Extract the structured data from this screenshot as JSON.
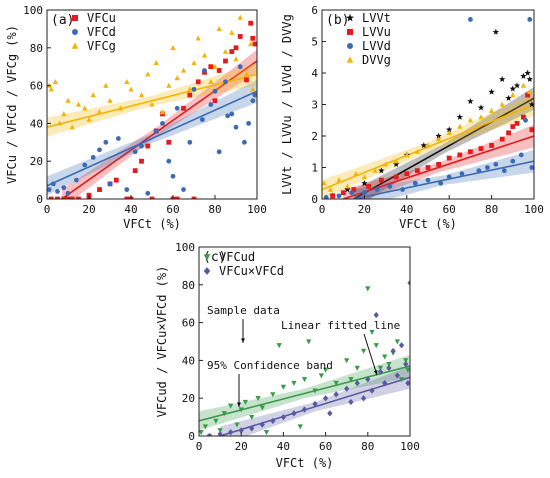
{
  "chart_data": [
    {
      "panel_label": "(a)",
      "type": "scatter",
      "xlabel": "VFCt (%)",
      "ylabel": "VFCu / VFCd / VFCg (%)",
      "xlim": [
        0,
        100
      ],
      "ylim": [
        0,
        100
      ],
      "xticks": [
        0,
        20,
        40,
        60,
        80,
        100
      ],
      "yticks": [
        0,
        20,
        40,
        60,
        80,
        100
      ],
      "legend_position": "top-left",
      "series": [
        {
          "name": "VFCu",
          "marker": "square",
          "color": "#e41a1c",
          "x": [
            2,
            5,
            8,
            12,
            15,
            20,
            25,
            30,
            33,
            38,
            42,
            45,
            48,
            52,
            55,
            58,
            62,
            65,
            68,
            72,
            75,
            78,
            80,
            82,
            85,
            88,
            90,
            92,
            95,
            97,
            98,
            99,
            60,
            70,
            40,
            50,
            20,
            10
          ],
          "y": [
            0,
            0,
            0,
            0,
            0,
            2,
            5,
            8,
            10,
            0,
            15,
            20,
            28,
            36,
            45,
            30,
            0,
            48,
            55,
            62,
            67,
            70,
            52,
            68,
            73,
            78,
            80,
            86,
            63,
            93,
            85,
            82,
            0,
            0,
            0,
            0,
            0,
            0
          ],
          "fit": {
            "x": [
              7,
              100
            ],
            "y": [
              0,
              73
            ]
          }
        },
        {
          "name": "VFCd",
          "marker": "circle",
          "color": "#3b6bb5",
          "x": [
            1,
            3,
            5,
            8,
            10,
            14,
            18,
            22,
            25,
            28,
            30,
            34,
            38,
            42,
            45,
            48,
            52,
            55,
            58,
            62,
            65,
            68,
            70,
            74,
            78,
            80,
            82,
            85,
            88,
            90,
            92,
            94,
            96,
            98,
            99,
            60,
            75,
            86
          ],
          "y": [
            5,
            8,
            4,
            6,
            3,
            10,
            18,
            22,
            26,
            30,
            8,
            32,
            5,
            25,
            28,
            3,
            36,
            40,
            20,
            48,
            5,
            30,
            58,
            42,
            50,
            57,
            25,
            62,
            45,
            38,
            70,
            30,
            40,
            52,
            55,
            12,
            68,
            44
          ],
          "fit": {
            "x": [
              0,
              100
            ],
            "y": [
              7,
              57
            ]
          }
        },
        {
          "name": "VFCg",
          "marker": "triangle",
          "color": "#f4b400",
          "x": [
            1,
            2,
            4,
            6,
            8,
            10,
            12,
            15,
            18,
            20,
            22,
            25,
            28,
            30,
            35,
            38,
            40,
            45,
            48,
            50,
            52,
            55,
            58,
            60,
            62,
            65,
            68,
            70,
            72,
            75,
            78,
            80,
            82,
            85,
            88,
            90,
            92,
            95,
            97,
            98
          ],
          "y": [
            60,
            58,
            62,
            40,
            45,
            52,
            38,
            50,
            48,
            42,
            55,
            46,
            60,
            52,
            48,
            62,
            58,
            55,
            66,
            50,
            72,
            46,
            60,
            80,
            64,
            68,
            58,
            72,
            85,
            76,
            62,
            70,
            90,
            78,
            88,
            74,
            96,
            66,
            82,
            58
          ],
          "fit": {
            "x": [
              0,
              100
            ],
            "y": [
              38,
              66
            ]
          }
        }
      ]
    },
    {
      "panel_label": "(b)",
      "type": "scatter",
      "xlabel": "VFCt (%)",
      "ylabel": "LVVt / LVVu / LVVd / DVVg",
      "xlim": [
        0,
        100
      ],
      "ylim": [
        0,
        6
      ],
      "xticks": [
        0,
        20,
        40,
        60,
        80,
        100
      ],
      "yticks": [
        0,
        1,
        2,
        3,
        4,
        5,
        6
      ],
      "legend_position": "top-left",
      "series": [
        {
          "name": "LVVt",
          "marker": "star",
          "color": "#111111",
          "x": [
            5,
            12,
            20,
            28,
            35,
            40,
            48,
            55,
            60,
            65,
            70,
            75,
            80,
            82,
            85,
            88,
            90,
            92,
            95,
            97,
            98,
            99
          ],
          "y": [
            0.1,
            0.3,
            0.5,
            0.9,
            1.1,
            1.4,
            1.7,
            2.0,
            2.2,
            2.6,
            3.1,
            2.9,
            3.4,
            5.3,
            3.8,
            3.2,
            3.5,
            3.6,
            3.9,
            4.0,
            3.8,
            3.0
          ],
          "fit": {
            "x": [
              15,
              100
            ],
            "y": [
              0,
              3.2
            ]
          }
        },
        {
          "name": "LVVu",
          "marker": "square",
          "color": "#e41a1c",
          "x": [
            5,
            10,
            15,
            22,
            28,
            35,
            40,
            45,
            50,
            55,
            60,
            65,
            70,
            75,
            80,
            85,
            88,
            90,
            92,
            95,
            97,
            99
          ],
          "y": [
            0.1,
            0.2,
            0.3,
            0.4,
            0.6,
            0.7,
            0.8,
            0.9,
            1.0,
            1.1,
            1.3,
            1.4,
            1.5,
            1.6,
            1.7,
            1.9,
            2.1,
            2.3,
            2.4,
            2.6,
            3.3,
            2.2
          ],
          "fit": {
            "x": [
              10,
              100
            ],
            "y": [
              0,
              2.0
            ]
          }
        },
        {
          "name": "LVVd",
          "marker": "circle",
          "color": "#3b6bb5",
          "x": [
            2,
            8,
            14,
            20,
            26,
            32,
            38,
            44,
            50,
            56,
            60,
            66,
            70,
            74,
            78,
            82,
            86,
            90,
            94,
            96,
            98,
            99
          ],
          "y": [
            0.05,
            0.1,
            0.2,
            0.2,
            0.3,
            0.4,
            0.3,
            0.5,
            0.6,
            0.5,
            0.7,
            0.8,
            5.7,
            0.9,
            1.0,
            1.1,
            0.9,
            1.2,
            1.4,
            2.5,
            5.7,
            1.0
          ],
          "fit": {
            "x": [
              15,
              100
            ],
            "y": [
              0,
              1.2
            ]
          }
        },
        {
          "name": "DVVg",
          "marker": "triangle",
          "color": "#f4b400",
          "x": [
            1,
            4,
            8,
            12,
            16,
            20,
            25,
            30,
            35,
            40,
            45,
            50,
            55,
            60,
            65,
            70,
            75,
            80,
            85,
            90,
            95,
            98
          ],
          "y": [
            0.5,
            0.3,
            0.6,
            0.4,
            0.8,
            0.7,
            0.9,
            1.1,
            1.2,
            1.4,
            1.5,
            1.7,
            1.9,
            2.1,
            2.3,
            2.5,
            2.6,
            2.8,
            3.0,
            3.3,
            3.6,
            3.4
          ],
          "fit": {
            "x": [
              0,
              100
            ],
            "y": [
              0.3,
              3.0
            ]
          }
        }
      ]
    },
    {
      "panel_label": "(c)",
      "type": "scatter",
      "xlabel": "VFCt (%)",
      "ylabel": "VFCud / VFCu×VFCd (%)",
      "xlim": [
        0,
        100
      ],
      "ylim": [
        0,
        100
      ],
      "xticks": [
        0,
        20,
        40,
        60,
        80,
        100
      ],
      "yticks": [
        0,
        20,
        40,
        60,
        80,
        100
      ],
      "legend_position": "top-left",
      "annotations": [
        "Sample data",
        "Linear fitted line",
        "95% Confidence band"
      ],
      "series": [
        {
          "name": "VFCud",
          "marker": "triangle-down",
          "color": "#3a9a4a",
          "x": [
            1,
            3,
            5,
            8,
            10,
            12,
            15,
            18,
            20,
            22,
            25,
            28,
            30,
            32,
            35,
            38,
            40,
            45,
            48,
            50,
            52,
            55,
            58,
            60,
            65,
            70,
            72,
            75,
            78,
            80,
            82,
            84,
            86,
            88,
            90,
            92,
            94,
            96,
            98,
            99
          ],
          "y": [
            2,
            5,
            0,
            8,
            3,
            12,
            16,
            6,
            14,
            18,
            10,
            20,
            15,
            2,
            22,
            48,
            26,
            28,
            5,
            30,
            50,
            24,
            32,
            35,
            28,
            40,
            30,
            36,
            45,
            78,
            55,
            48,
            36,
            42,
            38,
            44,
            50,
            30,
            40,
            35
          ],
          "fit": {
            "x": [
              0,
              100
            ],
            "y": [
              8,
              37
            ]
          }
        },
        {
          "name": "VFCu×VFCd",
          "marker": "diamond",
          "color": "#5a5aa0",
          "x": [
            5,
            10,
            15,
            20,
            25,
            30,
            35,
            40,
            45,
            50,
            55,
            60,
            62,
            65,
            70,
            72,
            75,
            78,
            80,
            82,
            84,
            86,
            88,
            90,
            92,
            94,
            96,
            98,
            99,
            100
          ],
          "y": [
            0,
            1,
            2,
            3,
            4,
            6,
            8,
            10,
            12,
            14,
            17,
            20,
            12,
            22,
            25,
            18,
            28,
            20,
            30,
            24,
            64,
            34,
            28,
            36,
            45,
            32,
            48,
            38,
            28,
            81
          ],
          "fit": {
            "x": [
              10,
              100
            ],
            "y": [
              0,
              31
            ]
          }
        }
      ]
    }
  ]
}
